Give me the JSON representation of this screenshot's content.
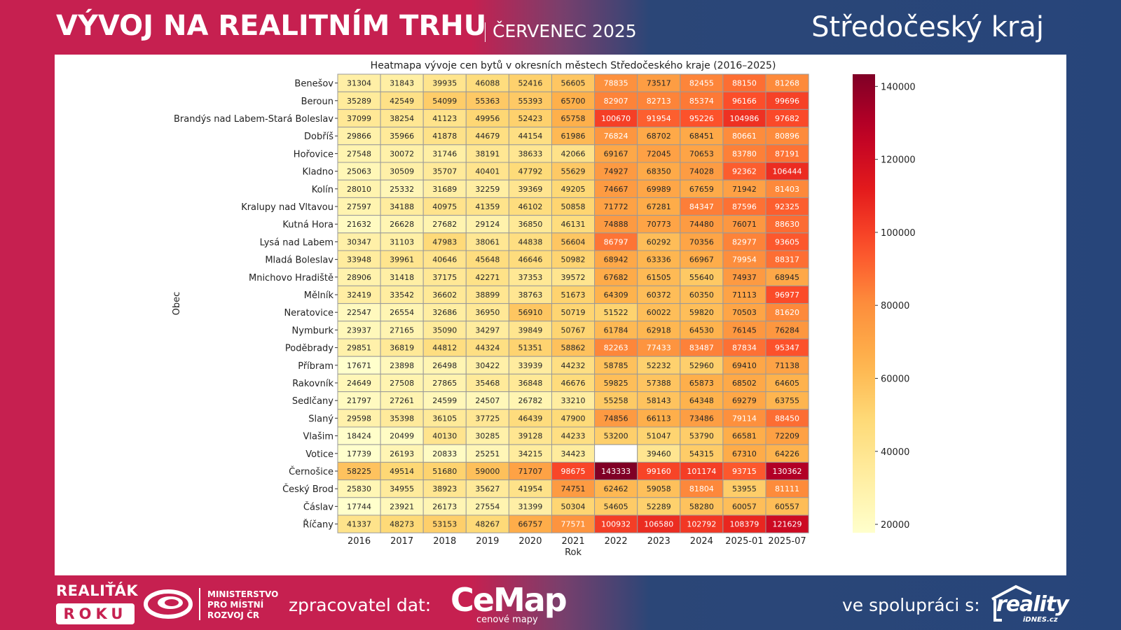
{
  "header": {
    "title": "VÝVOJ NA REALITNÍM TRHU",
    "subtitle": "ČERVENEC 2025",
    "region": "Středočeský kraj"
  },
  "footer": {
    "realitak_label": "REALIŤÁK",
    "roku_label": "ROKU",
    "ministry_label": "MINISTERSTVO\nPRO MÍSTNÍ\nROZVOJ ČR",
    "processor_label": "zpracovatel dat:",
    "cemap_label": "CeMap",
    "cemap_sub": "cenové mapy",
    "cooperation_label": "ve spolupráci s:",
    "reality_label": "reality",
    "idnes_label": "iDNES.cz"
  },
  "colors": {
    "brand_red": "#c62050",
    "brand_blue": "#27457a"
  },
  "chart_data": {
    "type": "heatmap",
    "title": "Heatmapa vývoje cen bytů v okresních městech Středočeského kraje (2016–2025)",
    "xlabel": "Rok",
    "ylabel": "Obec",
    "colormap": "YlOrRd",
    "vmin": 17671,
    "vmax": 143333,
    "colorbar_ticks": [
      20000,
      40000,
      60000,
      80000,
      100000,
      120000,
      140000
    ],
    "colorbar_tick_labels": [
      "20000",
      "40000",
      "60000",
      "80000",
      "100000",
      "120000",
      "140000"
    ],
    "legend_position": "right",
    "x": [
      "2016",
      "2017",
      "2018",
      "2019",
      "2020",
      "2021",
      "2022",
      "2023",
      "2024",
      "2025-01",
      "2025-07"
    ],
    "y": [
      "Benešov",
      "Beroun",
      "Brandýs nad Labem-Stará Boleslav",
      "Dobříš",
      "Hořovice",
      "Kladno",
      "Kolín",
      "Kralupy nad Vltavou",
      "Kutná Hora",
      "Lysá nad Labem",
      "Mladá Boleslav",
      "Mnichovo Hradiště",
      "Mělník",
      "Neratovice",
      "Nymburk",
      "Poděbrady",
      "Příbram",
      "Rakovník",
      "Sedlčany",
      "Slaný",
      "Vlašim",
      "Votice",
      "Černošice",
      "Český Brod",
      "Čáslav",
      "Říčany"
    ],
    "values": [
      [
        31304,
        31843,
        39935,
        46088,
        52416,
        56605,
        78835,
        73517,
        82455,
        88150,
        81268
      ],
      [
        35289,
        42549,
        54099,
        55363,
        55393,
        65700,
        82907,
        82713,
        85374,
        96166,
        99696
      ],
      [
        37099,
        38254,
        41123,
        49956,
        52423,
        65758,
        100670,
        91954,
        95226,
        104986,
        97682
      ],
      [
        29866,
        35966,
        41878,
        44679,
        44154,
        61986,
        76824,
        68702,
        68451,
        80661,
        80896
      ],
      [
        27548,
        30072,
        31746,
        38191,
        38633,
        42066,
        69167,
        72045,
        70653,
        83780,
        87191
      ],
      [
        25063,
        30509,
        35707,
        40401,
        47792,
        55629,
        74927,
        68350,
        74028,
        92362,
        106444
      ],
      [
        28010,
        25332,
        31689,
        32259,
        39369,
        49205,
        74667,
        69989,
        67659,
        71942,
        81403
      ],
      [
        27597,
        34188,
        40975,
        41359,
        46102,
        50858,
        71772,
        67281,
        84347,
        87596,
        92325
      ],
      [
        21632,
        26628,
        27682,
        29124,
        36850,
        46131,
        74888,
        70773,
        74480,
        76071,
        88630
      ],
      [
        30347,
        31103,
        47983,
        38061,
        44838,
        56604,
        86797,
        60292,
        70356,
        82977,
        93605
      ],
      [
        33948,
        39961,
        40646,
        45648,
        46646,
        50982,
        68942,
        63336,
        66967,
        79954,
        88317
      ],
      [
        28906,
        31418,
        37175,
        42271,
        37353,
        39572,
        67682,
        61505,
        55640,
        74937,
        68945
      ],
      [
        32419,
        33542,
        36602,
        38899,
        38763,
        51673,
        64309,
        60372,
        60350,
        71113,
        96977
      ],
      [
        22547,
        26554,
        32686,
        36950,
        56910,
        50719,
        51522,
        60022,
        59820,
        70503,
        81620
      ],
      [
        23937,
        27165,
        35090,
        34297,
        39849,
        50767,
        61784,
        62918,
        64530,
        76145,
        76284
      ],
      [
        29851,
        36819,
        44812,
        44324,
        51351,
        58862,
        82263,
        77433,
        83487,
        87834,
        95347
      ],
      [
        17671,
        23898,
        26498,
        30422,
        33939,
        44232,
        58785,
        52232,
        52960,
        69410,
        71138
      ],
      [
        24649,
        27508,
        27865,
        35468,
        36848,
        46676,
        59825,
        57388,
        65873,
        68502,
        64605
      ],
      [
        21797,
        27261,
        24599,
        24507,
        26782,
        33210,
        55258,
        58143,
        64348,
        69279,
        63755
      ],
      [
        29598,
        35398,
        36105,
        37725,
        46439,
        47900,
        74856,
        66113,
        73486,
        79114,
        88450
      ],
      [
        18424,
        20499,
        40130,
        30285,
        39128,
        44233,
        53200,
        51047,
        53790,
        66581,
        72209
      ],
      [
        17739,
        26193,
        20833,
        25251,
        34215,
        34423,
        null,
        39460,
        54315,
        67310,
        64226
      ],
      [
        58225,
        49514,
        51680,
        59000,
        71707,
        98675,
        143333,
        99160,
        101174,
        93715,
        130362
      ],
      [
        25830,
        34955,
        38923,
        35627,
        41954,
        74751,
        62462,
        59058,
        81804,
        53955,
        81111
      ],
      [
        17744,
        23921,
        26173,
        27554,
        31399,
        50304,
        54605,
        52289,
        58280,
        60057,
        60557
      ],
      [
        41337,
        48273,
        53153,
        48267,
        66757,
        77571,
        100932,
        106580,
        102792,
        108379,
        121629
      ]
    ]
  }
}
